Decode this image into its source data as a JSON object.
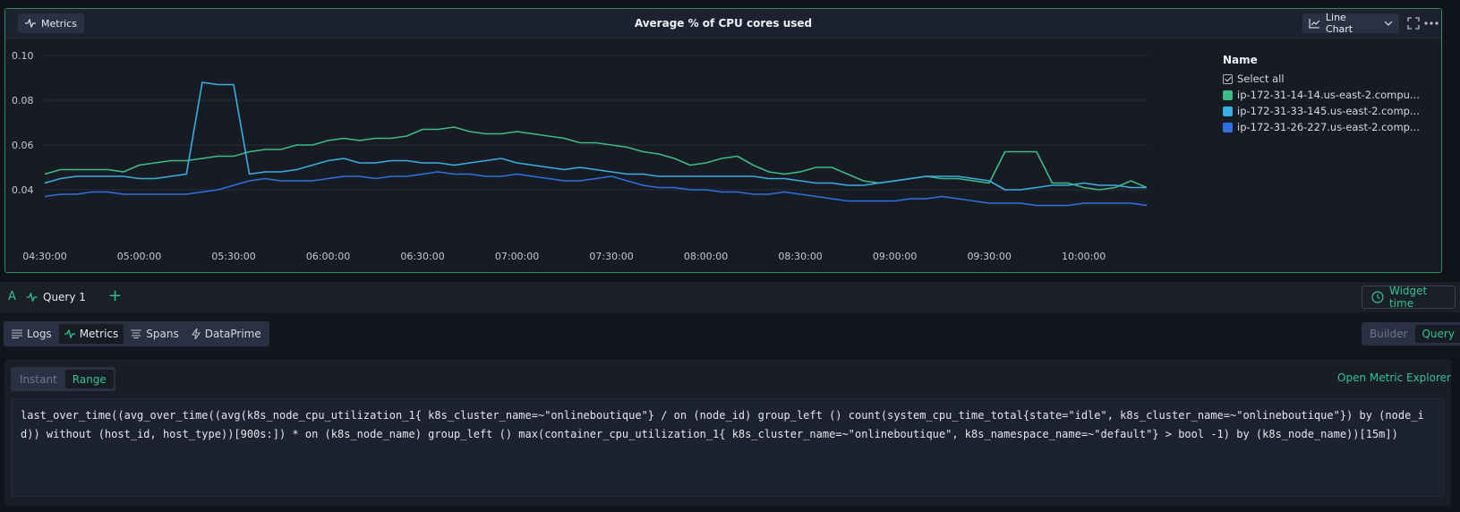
{
  "panel": {
    "chip_label": "Metrics",
    "title": "Average % of CPU cores used",
    "chart_type_label": "Line Chart"
  },
  "icons": {
    "metrics": "pulse-icon",
    "chart_type": "line-chart-icon",
    "chart_type_dropdown": "chevron-down-icon",
    "expand": "fullscreen-icon",
    "more": "more-horizontal-icon",
    "widget_time": "clock-icon",
    "logs": "list-icon",
    "spans": "filter-lines-icon",
    "dataprime": "bolt-icon",
    "add": "plus-icon"
  },
  "legend": {
    "title": "Name",
    "select_all": "Select all",
    "items": [
      {
        "label": "ip-172-31-14-14.us-east-2.compu...",
        "color": "#3dbb85"
      },
      {
        "label": "ip-172-31-33-145.us-east-2.comp...",
        "color": "#3aaee0"
      },
      {
        "label": "ip-172-31-26-227.us-east-2.comp...",
        "color": "#2f6fe0"
      }
    ]
  },
  "chart_data": {
    "type": "line",
    "x": [
      "04:30:00",
      "04:35:00",
      "04:40:00",
      "04:45:00",
      "04:50:00",
      "04:55:00",
      "05:00:00",
      "05:05:00",
      "05:10:00",
      "05:15:00",
      "05:20:00",
      "05:25:00",
      "05:30:00",
      "05:35:00",
      "05:40:00",
      "05:45:00",
      "05:50:00",
      "05:55:00",
      "06:00:00",
      "06:05:00",
      "06:10:00",
      "06:15:00",
      "06:20:00",
      "06:25:00",
      "06:30:00",
      "06:35:00",
      "06:40:00",
      "06:45:00",
      "06:50:00",
      "06:55:00",
      "07:00:00",
      "07:05:00",
      "07:10:00",
      "07:15:00",
      "07:20:00",
      "07:25:00",
      "07:30:00",
      "07:35:00",
      "07:40:00",
      "07:45:00",
      "07:50:00",
      "07:55:00",
      "08:00:00",
      "08:05:00",
      "08:10:00",
      "08:15:00",
      "08:20:00",
      "08:25:00",
      "08:30:00",
      "08:35:00",
      "08:40:00",
      "08:45:00",
      "08:50:00",
      "08:55:00",
      "09:00:00",
      "09:05:00",
      "09:10:00",
      "09:15:00",
      "09:20:00",
      "09:25:00",
      "09:30:00",
      "09:35:00",
      "09:40:00",
      "09:45:00",
      "09:50:00",
      "09:55:00",
      "10:00:00",
      "10:05:00",
      "10:10:00",
      "10:15:00",
      "10:20:00"
    ],
    "series": [
      {
        "name": "ip-172-31-14-14.us-east-2.compu...",
        "color": "#3dbb85",
        "values": [
          0.047,
          0.049,
          0.049,
          0.049,
          0.049,
          0.048,
          0.051,
          0.052,
          0.053,
          0.053,
          0.054,
          0.055,
          0.055,
          0.057,
          0.058,
          0.058,
          0.06,
          0.06,
          0.062,
          0.063,
          0.062,
          0.063,
          0.063,
          0.064,
          0.067,
          0.067,
          0.068,
          0.066,
          0.065,
          0.065,
          0.066,
          0.065,
          0.064,
          0.063,
          0.061,
          0.061,
          0.06,
          0.059,
          0.057,
          0.056,
          0.054,
          0.051,
          0.052,
          0.054,
          0.055,
          0.051,
          0.048,
          0.047,
          0.048,
          0.05,
          0.05,
          0.047,
          0.044,
          0.043,
          0.044,
          0.045,
          0.046,
          0.045,
          0.045,
          0.044,
          0.043,
          0.057,
          0.057,
          0.057,
          0.043,
          0.043,
          0.041,
          0.04,
          0.041,
          0.044,
          0.041
        ]
      },
      {
        "name": "ip-172-31-33-145.us-east-2.comp...",
        "color": "#3aaee0",
        "values": [
          0.043,
          0.045,
          0.046,
          0.046,
          0.046,
          0.046,
          0.045,
          0.045,
          0.046,
          0.047,
          0.088,
          0.087,
          0.087,
          0.047,
          0.048,
          0.048,
          0.049,
          0.051,
          0.053,
          0.054,
          0.052,
          0.052,
          0.053,
          0.053,
          0.052,
          0.052,
          0.051,
          0.052,
          0.053,
          0.054,
          0.052,
          0.051,
          0.05,
          0.049,
          0.05,
          0.049,
          0.048,
          0.047,
          0.047,
          0.046,
          0.046,
          0.046,
          0.046,
          0.046,
          0.046,
          0.046,
          0.045,
          0.045,
          0.044,
          0.043,
          0.043,
          0.042,
          0.042,
          0.043,
          0.044,
          0.045,
          0.046,
          0.046,
          0.046,
          0.045,
          0.044,
          0.04,
          0.04,
          0.041,
          0.042,
          0.042,
          0.043,
          0.042,
          0.042,
          0.041,
          0.041
        ]
      },
      {
        "name": "ip-172-31-26-227.us-east-2.comp...",
        "color": "#2f6fe0",
        "values": [
          0.037,
          0.038,
          0.038,
          0.039,
          0.039,
          0.038,
          0.038,
          0.038,
          0.038,
          0.038,
          0.039,
          0.04,
          0.042,
          0.044,
          0.045,
          0.044,
          0.044,
          0.044,
          0.045,
          0.046,
          0.046,
          0.045,
          0.046,
          0.046,
          0.047,
          0.048,
          0.047,
          0.047,
          0.046,
          0.046,
          0.047,
          0.046,
          0.045,
          0.044,
          0.044,
          0.045,
          0.046,
          0.044,
          0.042,
          0.041,
          0.041,
          0.04,
          0.04,
          0.039,
          0.039,
          0.038,
          0.038,
          0.039,
          0.038,
          0.037,
          0.036,
          0.035,
          0.035,
          0.035,
          0.035,
          0.036,
          0.036,
          0.037,
          0.036,
          0.035,
          0.034,
          0.034,
          0.034,
          0.033,
          0.033,
          0.033,
          0.034,
          0.034,
          0.034,
          0.034,
          0.033
        ]
      }
    ],
    "x_ticks": [
      "04:30:00",
      "05:00:00",
      "05:30:00",
      "06:00:00",
      "06:30:00",
      "07:00:00",
      "07:30:00",
      "08:00:00",
      "08:30:00",
      "09:00:00",
      "09:30:00",
      "10:00:00"
    ],
    "y_ticks": [
      "0.10",
      "0.08",
      "0.06",
      "0.04"
    ],
    "ylim": [
      0.025,
      0.1
    ],
    "grid": true,
    "legend_position": "right"
  },
  "query_tabs": {
    "letter": "A",
    "tab_label": "Query 1",
    "add_label": "+",
    "widget_time_label": "Widget time"
  },
  "sources": {
    "items": [
      {
        "label": "Logs",
        "active": false
      },
      {
        "label": "Metrics",
        "active": true
      },
      {
        "label": "Spans",
        "active": false
      },
      {
        "label": "DataPrime",
        "active": false
      }
    ],
    "builder_label": "Builder",
    "query_label": "Query"
  },
  "editor": {
    "instant_label": "Instant",
    "range_label": "Range",
    "open_explorer_label": "Open Metric Explorer",
    "query_text": "last_over_time((avg_over_time((avg(k8s_node_cpu_utilization_1{ k8s_cluster_name=~\"onlineboutique\"} / on (node_id) group_left () count(system_cpu_time_total{state=\"idle\", k8s_cluster_name=~\"onlineboutique\"}) by (node_id)) without (host_id, host_type))[900s:]) * on (k8s_node_name) group_left () max(container_cpu_utilization_1{ k8s_cluster_name=~\"onlineboutique\", k8s_namespace_name=~\"default\"} > bool -1) by (k8s_node_name))[15m])"
  }
}
